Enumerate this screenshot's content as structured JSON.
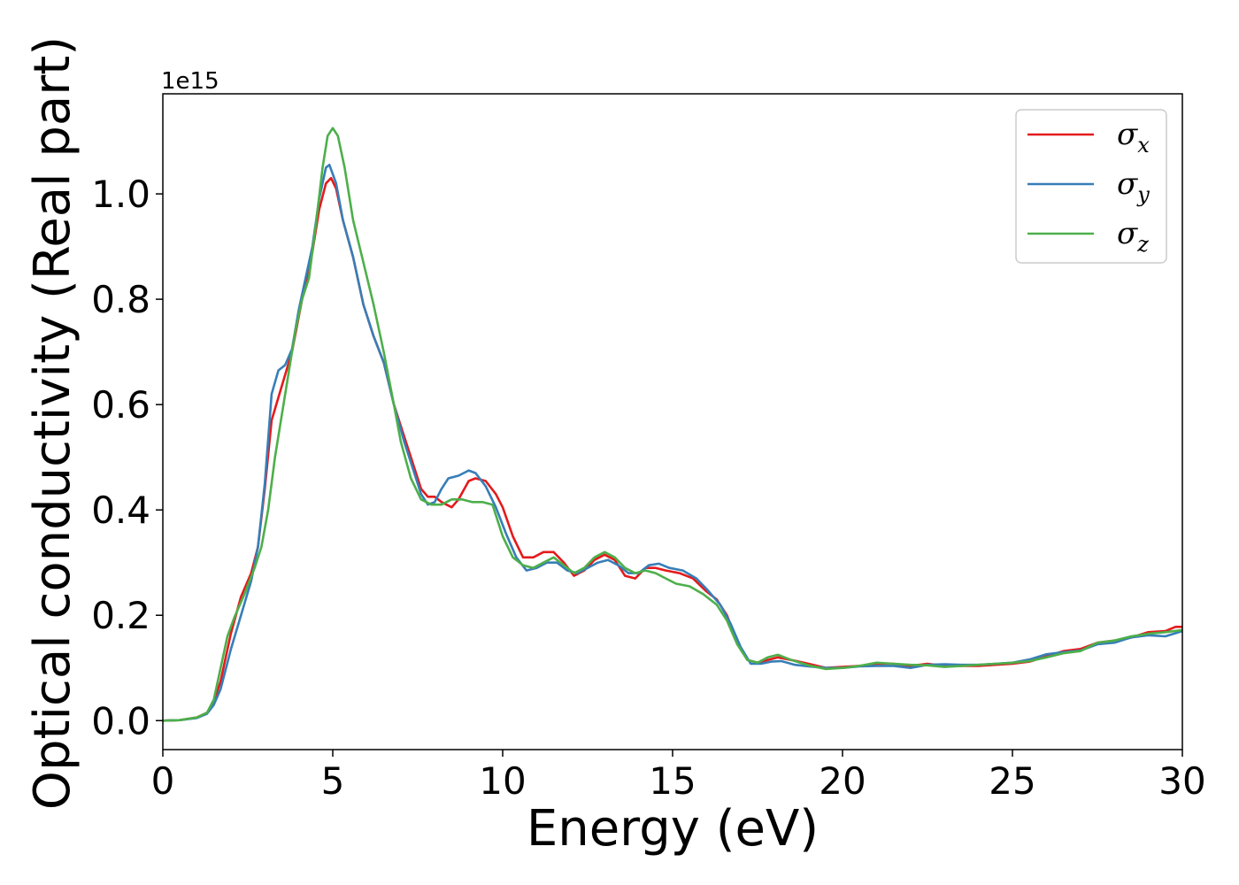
{
  "chart_data": {
    "type": "line",
    "xlabel": "Energy (eV)",
    "ylabel": "Optical conductivity (Real part)",
    "y_offset_label": "1e15",
    "xlim": [
      0,
      30
    ],
    "ylim": [
      -0.055,
      1.19
    ],
    "x_ticks": [
      0,
      5,
      10,
      15,
      20,
      25,
      30
    ],
    "x_tick_labels": [
      "0",
      "5",
      "10",
      "15",
      "20",
      "25",
      "30"
    ],
    "y_ticks": [
      0.0,
      0.2,
      0.4,
      0.6,
      0.8,
      1.0
    ],
    "y_tick_labels": [
      "0.0",
      "0.2",
      "0.4",
      "0.6",
      "0.8",
      "1.0"
    ],
    "grid": false,
    "legend_position": "top-right",
    "series": [
      {
        "name": "σ",
        "subscript": "x",
        "color": "#e41a1c",
        "points": [
          [
            0,
            0
          ],
          [
            0.5,
            0.001
          ],
          [
            1,
            0.006
          ],
          [
            1.3,
            0.015
          ],
          [
            1.5,
            0.035
          ],
          [
            1.7,
            0.075
          ],
          [
            2,
            0.165
          ],
          [
            2.3,
            0.235
          ],
          [
            2.6,
            0.28
          ],
          [
            2.8,
            0.33
          ],
          [
            3,
            0.44
          ],
          [
            3.2,
            0.57
          ],
          [
            3.5,
            0.635
          ],
          [
            3.8,
            0.7
          ],
          [
            4.1,
            0.8
          ],
          [
            4.4,
            0.89
          ],
          [
            4.6,
            0.97
          ],
          [
            4.8,
            1.02
          ],
          [
            4.95,
            1.03
          ],
          [
            5.1,
            1.01
          ],
          [
            5.3,
            0.95
          ],
          [
            5.6,
            0.88
          ],
          [
            5.9,
            0.79
          ],
          [
            6.2,
            0.73
          ],
          [
            6.5,
            0.68
          ],
          [
            6.8,
            0.6
          ],
          [
            7.1,
            0.54
          ],
          [
            7.3,
            0.5
          ],
          [
            7.6,
            0.44
          ],
          [
            7.8,
            0.425
          ],
          [
            8,
            0.425
          ],
          [
            8.2,
            0.415
          ],
          [
            8.5,
            0.405
          ],
          [
            8.7,
            0.42
          ],
          [
            9,
            0.455
          ],
          [
            9.2,
            0.46
          ],
          [
            9.5,
            0.455
          ],
          [
            9.8,
            0.43
          ],
          [
            10,
            0.405
          ],
          [
            10.3,
            0.35
          ],
          [
            10.6,
            0.31
          ],
          [
            10.9,
            0.31
          ],
          [
            11.2,
            0.32
          ],
          [
            11.5,
            0.32
          ],
          [
            11.8,
            0.3
          ],
          [
            12.1,
            0.275
          ],
          [
            12.4,
            0.285
          ],
          [
            12.7,
            0.305
          ],
          [
            13,
            0.315
          ],
          [
            13.3,
            0.305
          ],
          [
            13.6,
            0.275
          ],
          [
            13.9,
            0.27
          ],
          [
            14.2,
            0.29
          ],
          [
            14.5,
            0.29
          ],
          [
            14.8,
            0.285
          ],
          [
            15.2,
            0.28
          ],
          [
            15.6,
            0.27
          ],
          [
            16,
            0.245
          ],
          [
            16.3,
            0.23
          ],
          [
            16.6,
            0.2
          ],
          [
            16.9,
            0.15
          ],
          [
            17.2,
            0.115
          ],
          [
            17.5,
            0.11
          ],
          [
            17.8,
            0.115
          ],
          [
            18.1,
            0.12
          ],
          [
            18.5,
            0.115
          ],
          [
            19,
            0.108
          ],
          [
            19.5,
            0.1
          ],
          [
            20,
            0.102
          ],
          [
            20.5,
            0.104
          ],
          [
            21,
            0.108
          ],
          [
            21.5,
            0.108
          ],
          [
            22,
            0.104
          ],
          [
            22.5,
            0.108
          ],
          [
            23,
            0.104
          ],
          [
            23.5,
            0.104
          ],
          [
            24,
            0.104
          ],
          [
            24.5,
            0.106
          ],
          [
            25,
            0.108
          ],
          [
            25.5,
            0.112
          ],
          [
            26,
            0.122
          ],
          [
            26.5,
            0.132
          ],
          [
            27,
            0.136
          ],
          [
            27.5,
            0.148
          ],
          [
            28,
            0.152
          ],
          [
            28.5,
            0.158
          ],
          [
            29,
            0.168
          ],
          [
            29.5,
            0.17
          ],
          [
            29.8,
            0.178
          ],
          [
            30,
            0.178
          ]
        ]
      },
      {
        "name": "σ",
        "subscript": "y",
        "color": "#377eb8",
        "points": [
          [
            0,
            0
          ],
          [
            0.5,
            0.001
          ],
          [
            1,
            0.005
          ],
          [
            1.3,
            0.013
          ],
          [
            1.5,
            0.03
          ],
          [
            1.7,
            0.06
          ],
          [
            2,
            0.135
          ],
          [
            2.3,
            0.2
          ],
          [
            2.6,
            0.265
          ],
          [
            2.8,
            0.33
          ],
          [
            3,
            0.45
          ],
          [
            3.2,
            0.62
          ],
          [
            3.4,
            0.665
          ],
          [
            3.6,
            0.675
          ],
          [
            3.8,
            0.705
          ],
          [
            4,
            0.78
          ],
          [
            4.2,
            0.84
          ],
          [
            4.4,
            0.9
          ],
          [
            4.6,
            0.99
          ],
          [
            4.8,
            1.05
          ],
          [
            4.9,
            1.055
          ],
          [
            5.1,
            1.02
          ],
          [
            5.3,
            0.95
          ],
          [
            5.6,
            0.88
          ],
          [
            5.9,
            0.79
          ],
          [
            6.2,
            0.73
          ],
          [
            6.5,
            0.68
          ],
          [
            6.8,
            0.6
          ],
          [
            7.1,
            0.53
          ],
          [
            7.3,
            0.49
          ],
          [
            7.6,
            0.43
          ],
          [
            7.8,
            0.41
          ],
          [
            8,
            0.415
          ],
          [
            8.2,
            0.44
          ],
          [
            8.4,
            0.46
          ],
          [
            8.7,
            0.465
          ],
          [
            9,
            0.475
          ],
          [
            9.2,
            0.47
          ],
          [
            9.5,
            0.445
          ],
          [
            9.8,
            0.405
          ],
          [
            10.1,
            0.355
          ],
          [
            10.4,
            0.31
          ],
          [
            10.7,
            0.285
          ],
          [
            11,
            0.29
          ],
          [
            11.3,
            0.3
          ],
          [
            11.6,
            0.3
          ],
          [
            11.9,
            0.285
          ],
          [
            12.2,
            0.28
          ],
          [
            12.5,
            0.29
          ],
          [
            12.8,
            0.3
          ],
          [
            13.1,
            0.305
          ],
          [
            13.4,
            0.295
          ],
          [
            13.7,
            0.28
          ],
          [
            14,
            0.28
          ],
          [
            14.3,
            0.295
          ],
          [
            14.6,
            0.298
          ],
          [
            14.9,
            0.29
          ],
          [
            15.3,
            0.285
          ],
          [
            15.7,
            0.27
          ],
          [
            16,
            0.25
          ],
          [
            16.4,
            0.22
          ],
          [
            16.7,
            0.185
          ],
          [
            17,
            0.14
          ],
          [
            17.3,
            0.108
          ],
          [
            17.6,
            0.108
          ],
          [
            17.9,
            0.112
          ],
          [
            18.2,
            0.113
          ],
          [
            18.6,
            0.106
          ],
          [
            19,
            0.103
          ],
          [
            19.5,
            0.1
          ],
          [
            20,
            0.1
          ],
          [
            20.5,
            0.103
          ],
          [
            21,
            0.104
          ],
          [
            21.5,
            0.104
          ],
          [
            22,
            0.1
          ],
          [
            22.5,
            0.106
          ],
          [
            23,
            0.107
          ],
          [
            23.5,
            0.106
          ],
          [
            24,
            0.106
          ],
          [
            24.5,
            0.108
          ],
          [
            25,
            0.11
          ],
          [
            25.5,
            0.116
          ],
          [
            26,
            0.126
          ],
          [
            26.5,
            0.13
          ],
          [
            27,
            0.133
          ],
          [
            27.5,
            0.145
          ],
          [
            28,
            0.148
          ],
          [
            28.5,
            0.158
          ],
          [
            29,
            0.162
          ],
          [
            29.5,
            0.16
          ],
          [
            30,
            0.17
          ]
        ]
      },
      {
        "name": "σ",
        "subscript": "z",
        "color": "#4daf4a",
        "points": [
          [
            0,
            0
          ],
          [
            0.5,
            0.001
          ],
          [
            1,
            0.006
          ],
          [
            1.3,
            0.015
          ],
          [
            1.5,
            0.04
          ],
          [
            1.7,
            0.1
          ],
          [
            1.9,
            0.16
          ],
          [
            2.1,
            0.195
          ],
          [
            2.4,
            0.24
          ],
          [
            2.7,
            0.29
          ],
          [
            2.9,
            0.33
          ],
          [
            3.1,
            0.4
          ],
          [
            3.3,
            0.5
          ],
          [
            3.5,
            0.58
          ],
          [
            3.7,
            0.66
          ],
          [
            3.9,
            0.74
          ],
          [
            4.1,
            0.8
          ],
          [
            4.3,
            0.84
          ],
          [
            4.5,
            0.94
          ],
          [
            4.7,
            1.05
          ],
          [
            4.85,
            1.11
          ],
          [
            5,
            1.125
          ],
          [
            5.15,
            1.11
          ],
          [
            5.35,
            1.05
          ],
          [
            5.6,
            0.95
          ],
          [
            5.9,
            0.87
          ],
          [
            6.2,
            0.79
          ],
          [
            6.5,
            0.7
          ],
          [
            6.8,
            0.6
          ],
          [
            7,
            0.53
          ],
          [
            7.3,
            0.46
          ],
          [
            7.6,
            0.42
          ],
          [
            7.9,
            0.41
          ],
          [
            8.2,
            0.41
          ],
          [
            8.5,
            0.42
          ],
          [
            8.8,
            0.42
          ],
          [
            9.1,
            0.415
          ],
          [
            9.4,
            0.415
          ],
          [
            9.7,
            0.41
          ],
          [
            10,
            0.35
          ],
          [
            10.3,
            0.31
          ],
          [
            10.6,
            0.295
          ],
          [
            10.9,
            0.29
          ],
          [
            11.2,
            0.3
          ],
          [
            11.5,
            0.31
          ],
          [
            11.8,
            0.295
          ],
          [
            12.1,
            0.28
          ],
          [
            12.4,
            0.29
          ],
          [
            12.7,
            0.31
          ],
          [
            13,
            0.32
          ],
          [
            13.3,
            0.31
          ],
          [
            13.6,
            0.29
          ],
          [
            13.9,
            0.28
          ],
          [
            14.2,
            0.285
          ],
          [
            14.5,
            0.28
          ],
          [
            14.8,
            0.27
          ],
          [
            15.1,
            0.26
          ],
          [
            15.5,
            0.255
          ],
          [
            15.9,
            0.24
          ],
          [
            16.3,
            0.22
          ],
          [
            16.6,
            0.19
          ],
          [
            16.9,
            0.145
          ],
          [
            17.2,
            0.115
          ],
          [
            17.5,
            0.11
          ],
          [
            17.8,
            0.12
          ],
          [
            18.1,
            0.125
          ],
          [
            18.5,
            0.115
          ],
          [
            19,
            0.105
          ],
          [
            19.5,
            0.098
          ],
          [
            20,
            0.1
          ],
          [
            20.5,
            0.104
          ],
          [
            21,
            0.11
          ],
          [
            21.5,
            0.108
          ],
          [
            22,
            0.106
          ],
          [
            22.5,
            0.105
          ],
          [
            23,
            0.102
          ],
          [
            23.5,
            0.104
          ],
          [
            24,
            0.106
          ],
          [
            24.5,
            0.108
          ],
          [
            25,
            0.11
          ],
          [
            25.5,
            0.113
          ],
          [
            26,
            0.12
          ],
          [
            26.5,
            0.128
          ],
          [
            27,
            0.132
          ],
          [
            27.5,
            0.148
          ],
          [
            28,
            0.152
          ],
          [
            28.5,
            0.16
          ],
          [
            29,
            0.165
          ],
          [
            29.5,
            0.168
          ],
          [
            30,
            0.172
          ]
        ]
      }
    ]
  }
}
